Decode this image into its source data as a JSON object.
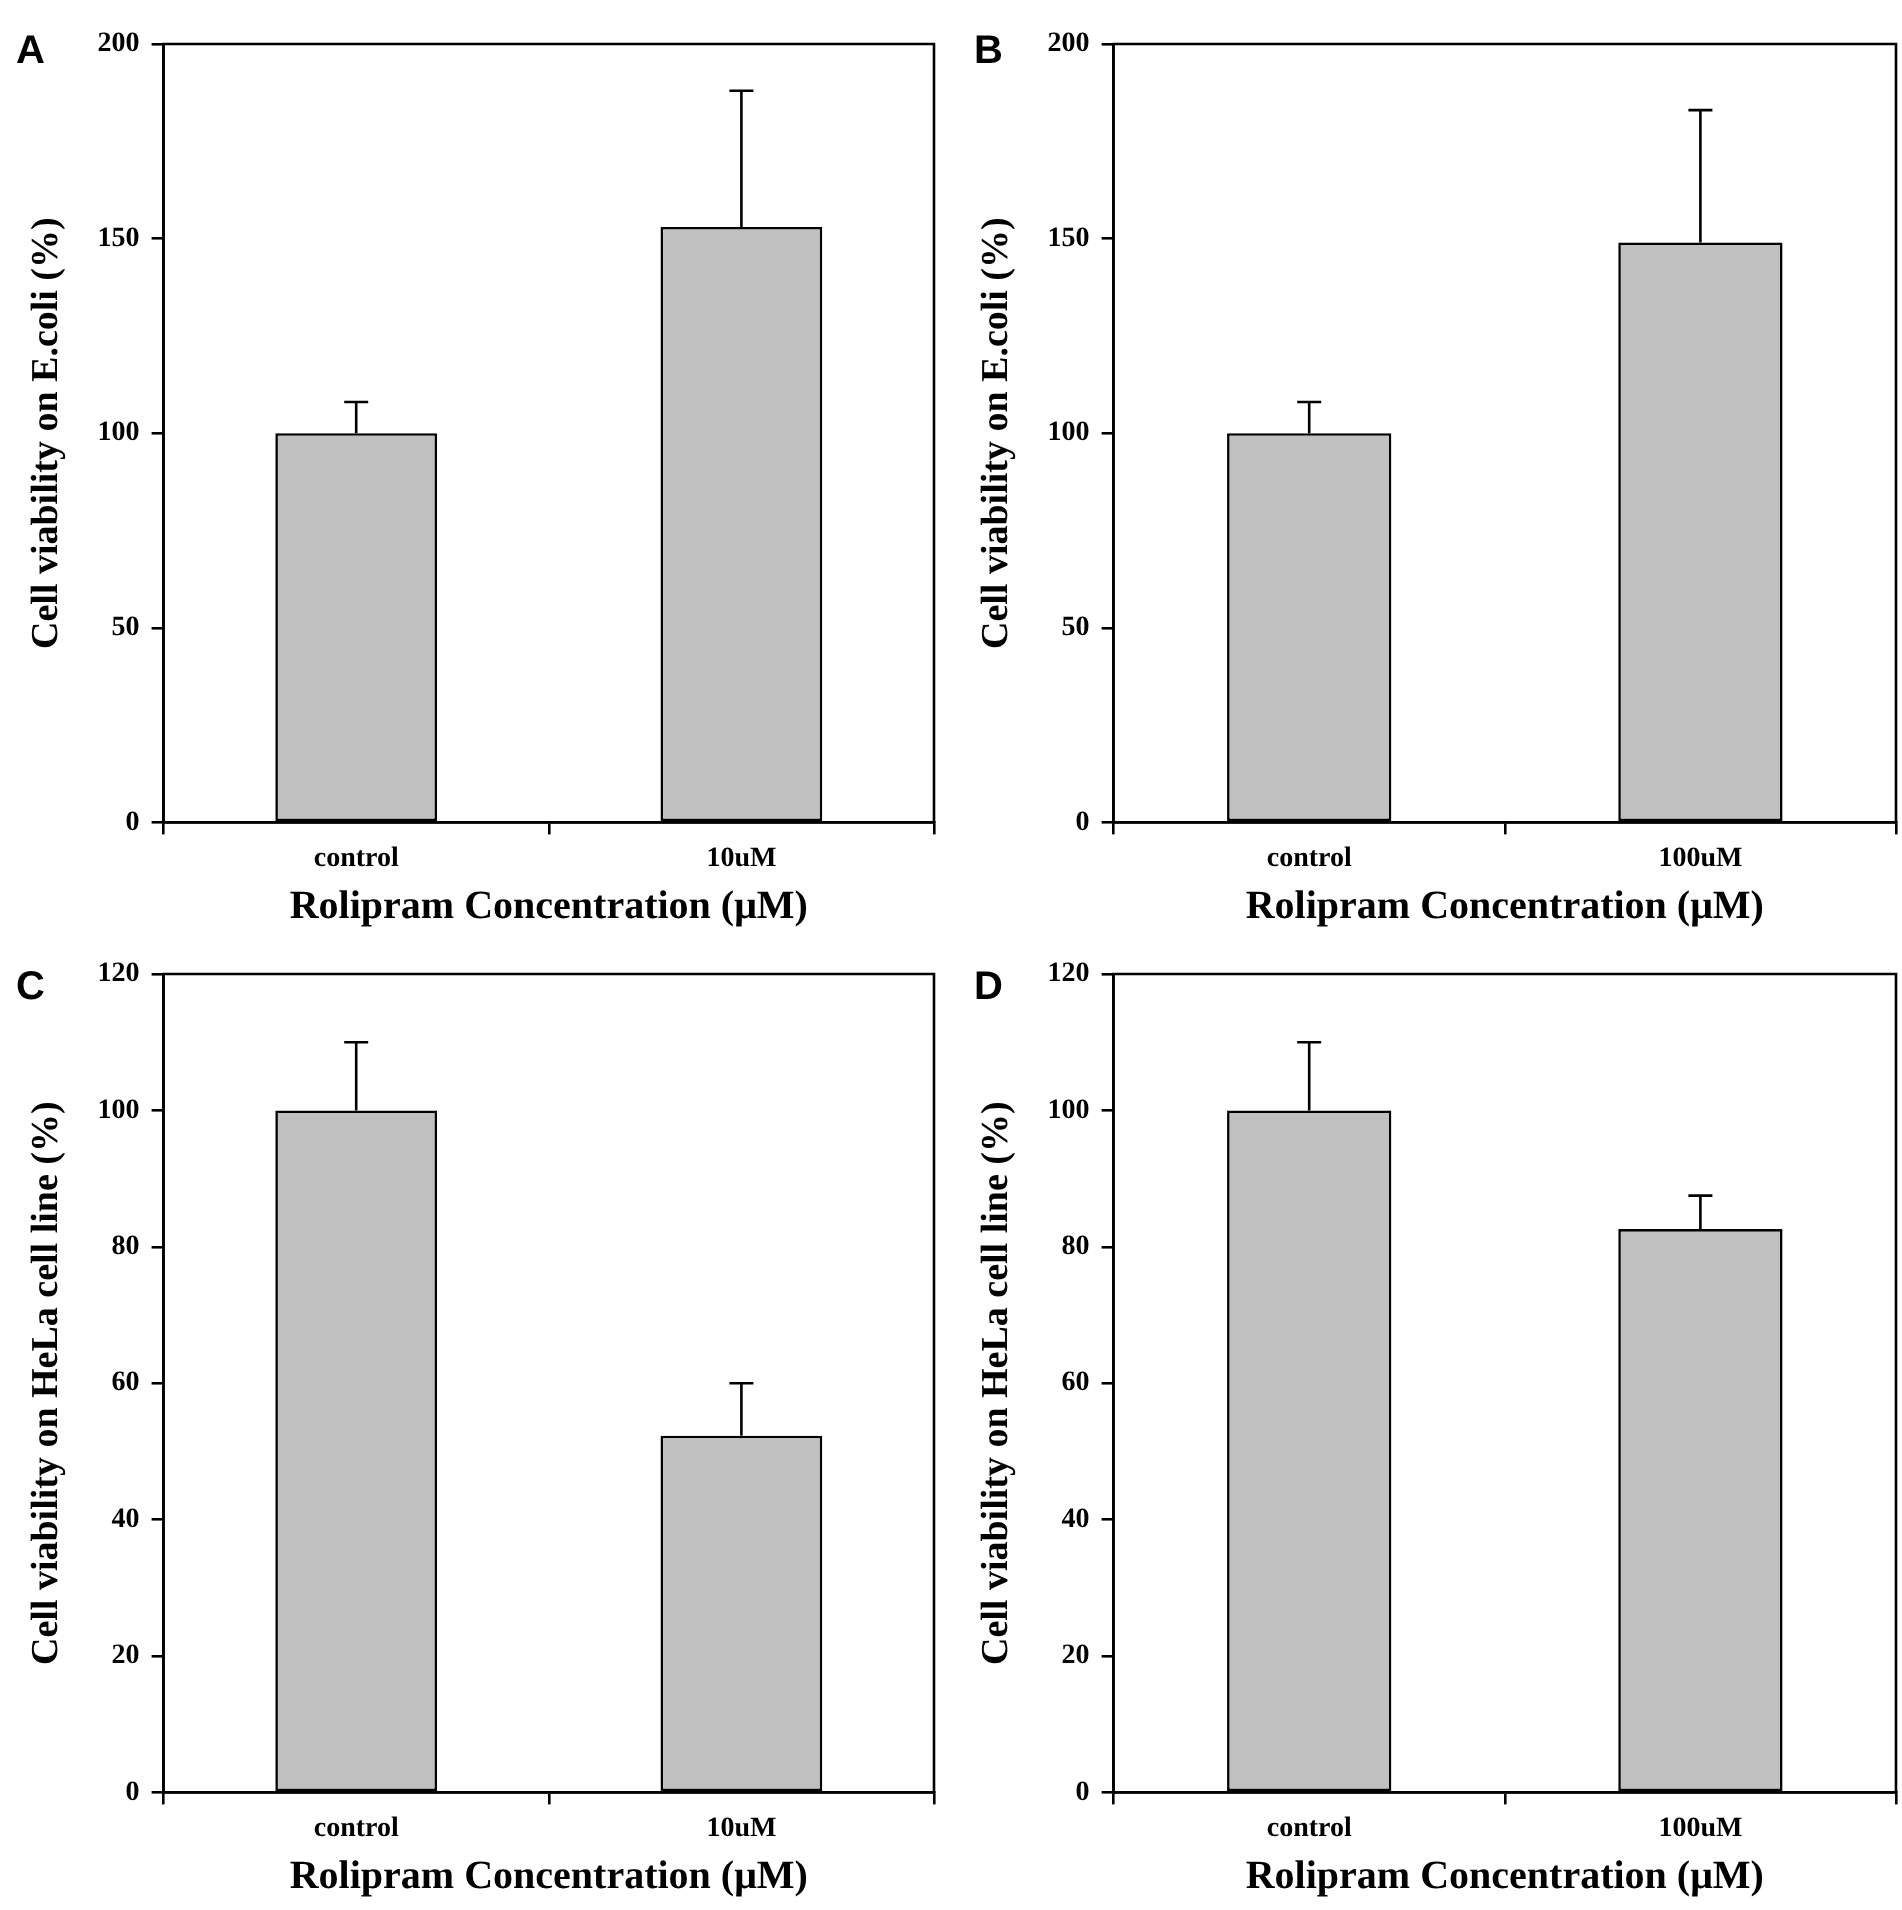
{
  "chart_data": [
    {
      "type": "bar",
      "title": "A",
      "xlabel": "Rolipram Concentration (μM)",
      "ylabel": "Cell viability on E.coli (%)",
      "categories": [
        "control",
        "10uM"
      ],
      "values": [
        100,
        153
      ],
      "errors": [
        [
          100,
          108
        ],
        [
          153,
          188
        ]
      ],
      "color": "#c0c0c0",
      "ylim": [
        0,
        200
      ],
      "yticks": [
        0,
        50,
        100,
        150,
        200
      ]
    },
    {
      "type": "bar",
      "title": "B",
      "xlabel": "Rolipram Concentration (μM)",
      "ylabel": "Cell viability on E.coli (%)",
      "categories": [
        "control",
        "100uM"
      ],
      "values": [
        100,
        149
      ],
      "errors": [
        [
          100,
          108
        ],
        [
          149,
          183
        ]
      ],
      "color": "#c0c0c0",
      "ylim": [
        0,
        200
      ],
      "yticks": [
        0,
        50,
        100,
        150,
        200
      ]
    },
    {
      "type": "bar",
      "title": "C",
      "xlabel": "Rolipram Concentration (μM)",
      "ylabel": "Cell viability on HeLa cell line (%)",
      "categories": [
        "control",
        "10uM"
      ],
      "values": [
        100,
        52.3
      ],
      "errors": [
        [
          100,
          110
        ],
        [
          52.3,
          60
        ]
      ],
      "color": "#c0c0c0",
      "ylim": [
        0,
        120
      ],
      "yticks": [
        0,
        20,
        40,
        60,
        80,
        100,
        120
      ]
    },
    {
      "type": "bar",
      "title": "D",
      "xlabel": "Rolipram Concentration (μM)",
      "ylabel": "Cell viability on HeLa cell line (%)",
      "categories": [
        "control",
        "100uM"
      ],
      "values": [
        100,
        82.6
      ],
      "errors": [
        [
          100,
          110
        ],
        [
          82.6,
          87.5
        ]
      ],
      "color": "#c0c0c0",
      "ylim": [
        0,
        120
      ],
      "yticks": [
        0,
        20,
        40,
        60,
        80,
        100,
        120
      ]
    }
  ]
}
